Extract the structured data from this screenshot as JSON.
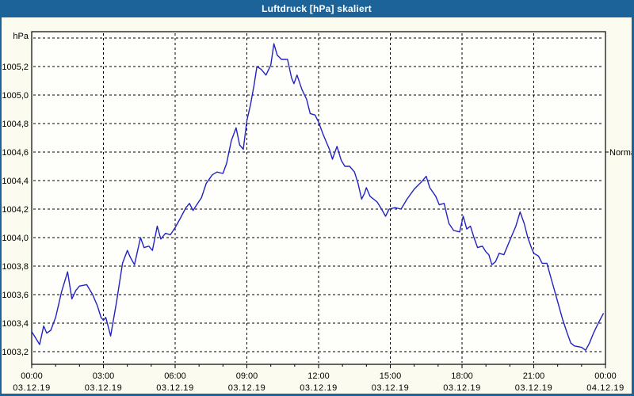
{
  "window": {
    "title": "Luftdruck [hPa] skaliert"
  },
  "colors": {
    "titlebar_bg": "#1B6399",
    "titlebar_text": "#FFFFFF",
    "window_border": "#1B6399",
    "outer_bg": "#FBFBF0",
    "plot_bg": "#FEFEFB",
    "line": "#2222C2",
    "grid": "#000000",
    "text": "#000000"
  },
  "chart_data": {
    "type": "line",
    "title": "Luftdruck [hPa] skaliert",
    "unit_label": "hPa",
    "grid": true,
    "y_axis": {
      "min_gridline": 1003.2,
      "max_gridline": 1005.4,
      "step": 0.2,
      "ylim": [
        1003.11,
        1005.45
      ],
      "labeled_ticks": [
        "1005,2",
        "1005,0",
        "1004,8",
        "1004,6",
        "1004,4",
        "1004,2",
        "1004,0",
        "1003,8",
        "1003,6",
        "1003,4",
        "1003,2"
      ]
    },
    "x_axis": {
      "hours_span": 24,
      "major_step_hours": 3,
      "minor_step_hours": 1,
      "ticks": [
        {
          "time": "00:00",
          "date": "03.12.19"
        },
        {
          "time": "03:00",
          "date": "03.12.19"
        },
        {
          "time": "06:00",
          "date": "03.12.19"
        },
        {
          "time": "09:00",
          "date": "03.12.19"
        },
        {
          "time": "12:00",
          "date": "03.12.19"
        },
        {
          "time": "15:00",
          "date": "03.12.19"
        },
        {
          "time": "18:00",
          "date": "03.12.19"
        },
        {
          "time": "21:00",
          "date": "03.12.19"
        },
        {
          "time": "00:00",
          "date": "04.12.19"
        }
      ]
    },
    "annotation": {
      "label": "Normal",
      "value": 1004.6
    },
    "series": [
      {
        "name": "Luftdruck",
        "color": "#2222C2",
        "points": [
          [
            0.0,
            1003.34
          ],
          [
            0.15,
            1003.3
          ],
          [
            0.33,
            1003.25
          ],
          [
            0.5,
            1003.38
          ],
          [
            0.63,
            1003.33
          ],
          [
            0.8,
            1003.35
          ],
          [
            1.0,
            1003.44
          ],
          [
            1.25,
            1003.62
          ],
          [
            1.5,
            1003.76
          ],
          [
            1.68,
            1003.57
          ],
          [
            1.85,
            1003.63
          ],
          [
            2.0,
            1003.66
          ],
          [
            2.3,
            1003.67
          ],
          [
            2.55,
            1003.6
          ],
          [
            2.75,
            1003.52
          ],
          [
            2.9,
            1003.44
          ],
          [
            3.0,
            1003.42
          ],
          [
            3.1,
            1003.44
          ],
          [
            3.3,
            1003.31
          ],
          [
            3.55,
            1003.55
          ],
          [
            3.8,
            1003.82
          ],
          [
            4.0,
            1003.91
          ],
          [
            4.13,
            1003.86
          ],
          [
            4.3,
            1003.81
          ],
          [
            4.55,
            1004.0
          ],
          [
            4.7,
            1003.93
          ],
          [
            4.9,
            1003.94
          ],
          [
            5.05,
            1003.91
          ],
          [
            5.25,
            1004.08
          ],
          [
            5.4,
            1003.99
          ],
          [
            5.6,
            1004.03
          ],
          [
            5.8,
            1004.02
          ],
          [
            6.0,
            1004.07
          ],
          [
            6.2,
            1004.13
          ],
          [
            6.45,
            1004.21
          ],
          [
            6.6,
            1004.24
          ],
          [
            6.75,
            1004.19
          ],
          [
            6.9,
            1004.23
          ],
          [
            7.1,
            1004.28
          ],
          [
            7.3,
            1004.38
          ],
          [
            7.55,
            1004.44
          ],
          [
            7.75,
            1004.46
          ],
          [
            8.0,
            1004.45
          ],
          [
            8.15,
            1004.52
          ],
          [
            8.35,
            1004.68
          ],
          [
            8.55,
            1004.77
          ],
          [
            8.7,
            1004.65
          ],
          [
            8.85,
            1004.62
          ],
          [
            9.0,
            1004.82
          ],
          [
            9.15,
            1004.93
          ],
          [
            9.3,
            1005.07
          ],
          [
            9.42,
            1005.2
          ],
          [
            9.6,
            1005.18
          ],
          [
            9.8,
            1005.14
          ],
          [
            10.0,
            1005.21
          ],
          [
            10.13,
            1005.36
          ],
          [
            10.27,
            1005.28
          ],
          [
            10.45,
            1005.25
          ],
          [
            10.7,
            1005.25
          ],
          [
            10.87,
            1005.12
          ],
          [
            10.97,
            1005.08
          ],
          [
            11.1,
            1005.14
          ],
          [
            11.3,
            1005.04
          ],
          [
            11.5,
            1004.97
          ],
          [
            11.65,
            1004.87
          ],
          [
            11.85,
            1004.86
          ],
          [
            12.0,
            1004.81
          ],
          [
            12.2,
            1004.72
          ],
          [
            12.45,
            1004.62
          ],
          [
            12.58,
            1004.55
          ],
          [
            12.77,
            1004.64
          ],
          [
            12.95,
            1004.54
          ],
          [
            13.1,
            1004.5
          ],
          [
            13.3,
            1004.5
          ],
          [
            13.5,
            1004.46
          ],
          [
            13.65,
            1004.38
          ],
          [
            13.8,
            1004.27
          ],
          [
            13.92,
            1004.31
          ],
          [
            14.0,
            1004.35
          ],
          [
            14.15,
            1004.29
          ],
          [
            14.45,
            1004.25
          ],
          [
            14.6,
            1004.21
          ],
          [
            14.8,
            1004.15
          ],
          [
            14.95,
            1004.2
          ],
          [
            15.2,
            1004.21
          ],
          [
            15.45,
            1004.2
          ],
          [
            15.7,
            1004.27
          ],
          [
            16.0,
            1004.34
          ],
          [
            16.3,
            1004.39
          ],
          [
            16.5,
            1004.43
          ],
          [
            16.65,
            1004.35
          ],
          [
            16.9,
            1004.29
          ],
          [
            17.05,
            1004.23
          ],
          [
            17.25,
            1004.24
          ],
          [
            17.45,
            1004.1
          ],
          [
            17.65,
            1004.05
          ],
          [
            17.9,
            1004.04
          ],
          [
            18.05,
            1004.15
          ],
          [
            18.2,
            1004.06
          ],
          [
            18.35,
            1004.08
          ],
          [
            18.5,
            1004.0
          ],
          [
            18.65,
            1003.93
          ],
          [
            18.85,
            1003.94
          ],
          [
            19.0,
            1003.9
          ],
          [
            19.12,
            1003.88
          ],
          [
            19.25,
            1003.81
          ],
          [
            19.4,
            1003.83
          ],
          [
            19.55,
            1003.89
          ],
          [
            19.75,
            1003.88
          ],
          [
            19.9,
            1003.94
          ],
          [
            20.05,
            1004.0
          ],
          [
            20.25,
            1004.08
          ],
          [
            20.43,
            1004.18
          ],
          [
            20.6,
            1004.1
          ],
          [
            20.75,
            1004.0
          ],
          [
            20.9,
            1003.93
          ],
          [
            21.0,
            1003.89
          ],
          [
            21.2,
            1003.87
          ],
          [
            21.35,
            1003.82
          ],
          [
            21.55,
            1003.82
          ],
          [
            21.75,
            1003.7
          ],
          [
            22.0,
            1003.55
          ],
          [
            22.2,
            1003.43
          ],
          [
            22.4,
            1003.33
          ],
          [
            22.55,
            1003.26
          ],
          [
            22.7,
            1003.24
          ],
          [
            23.0,
            1003.23
          ],
          [
            23.17,
            1003.21
          ],
          [
            23.33,
            1003.26
          ],
          [
            23.5,
            1003.33
          ],
          [
            23.7,
            1003.4
          ],
          [
            23.92,
            1003.47
          ]
        ]
      }
    ]
  }
}
